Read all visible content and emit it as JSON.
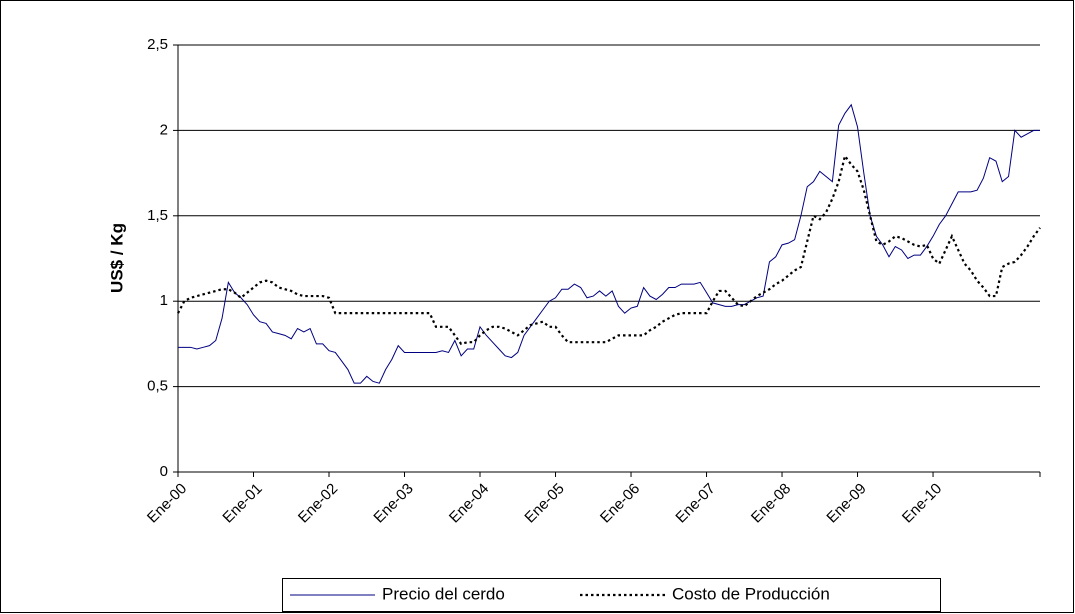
{
  "chart_data": {
    "type": "line",
    "ylabel": "US$ / Kg",
    "categories": [
      "Ene-00",
      null,
      null,
      null,
      null,
      null,
      null,
      null,
      null,
      null,
      null,
      null,
      "Ene-01",
      null,
      null,
      null,
      null,
      null,
      null,
      null,
      null,
      null,
      null,
      null,
      "Ene-02",
      null,
      null,
      null,
      null,
      null,
      null,
      null,
      null,
      null,
      null,
      null,
      "Ene-03",
      null,
      null,
      null,
      null,
      null,
      null,
      null,
      null,
      null,
      null,
      null,
      "Ene-04",
      null,
      null,
      null,
      null,
      null,
      null,
      null,
      null,
      null,
      null,
      null,
      "Ene-05",
      null,
      null,
      null,
      null,
      null,
      null,
      null,
      null,
      null,
      null,
      null,
      "Ene-06",
      null,
      null,
      null,
      null,
      null,
      null,
      null,
      null,
      null,
      null,
      null,
      "Ene-07",
      null,
      null,
      null,
      null,
      null,
      null,
      null,
      null,
      null,
      null,
      null,
      "Ene-08",
      null,
      null,
      null,
      null,
      null,
      null,
      null,
      null,
      null,
      null,
      null,
      "Ene-09",
      null,
      null,
      null,
      null,
      null,
      null,
      null,
      null,
      null,
      null,
      null,
      "Ene-10",
      null,
      null,
      null,
      null,
      null,
      null,
      null,
      null,
      null,
      null,
      null,
      null,
      null,
      null,
      null,
      null,
      null
    ],
    "series": [
      {
        "name": "Precio del cerdo",
        "color": "#000080",
        "dash": false,
        "values": [
          0.73,
          0.73,
          0.73,
          0.72,
          0.73,
          0.74,
          0.77,
          0.9,
          1.11,
          1.05,
          1.02,
          0.98,
          0.92,
          0.88,
          0.87,
          0.82,
          0.81,
          0.8,
          0.78,
          0.84,
          0.82,
          0.84,
          0.75,
          0.75,
          0.71,
          0.7,
          0.65,
          0.6,
          0.52,
          0.52,
          0.56,
          0.53,
          0.52,
          0.6,
          0.66,
          0.74,
          0.7,
          0.7,
          0.7,
          0.7,
          0.7,
          0.7,
          0.71,
          0.7,
          0.77,
          0.68,
          0.72,
          0.72,
          0.85,
          0.8,
          0.76,
          0.72,
          0.68,
          0.67,
          0.7,
          0.8,
          0.85,
          0.9,
          0.95,
          1.0,
          1.02,
          1.07,
          1.07,
          1.1,
          1.08,
          1.02,
          1.03,
          1.06,
          1.03,
          1.06,
          0.97,
          0.93,
          0.96,
          0.97,
          1.08,
          1.03,
          1.01,
          1.04,
          1.08,
          1.08,
          1.1,
          1.1,
          1.1,
          1.11,
          1.05,
          0.99,
          0.98,
          0.97,
          0.97,
          0.98,
          0.98,
          1.0,
          1.02,
          1.03,
          1.23,
          1.26,
          1.33,
          1.34,
          1.36,
          1.5,
          1.67,
          1.7,
          1.76,
          1.73,
          1.7,
          2.03,
          2.1,
          2.15,
          2.02,
          1.75,
          1.5,
          1.38,
          1.33,
          1.26,
          1.32,
          1.3,
          1.25,
          1.27,
          1.27,
          1.32,
          1.38,
          1.45,
          1.5,
          1.57,
          1.64,
          1.64,
          1.64,
          1.65,
          1.72,
          1.84,
          1.82,
          1.7,
          1.73,
          2.0,
          1.96,
          1.98,
          2.0,
          2.0
        ]
      },
      {
        "name": "Costo de Producción",
        "color": "#000000",
        "dash": true,
        "values": [
          0.93,
          1.0,
          1.02,
          1.03,
          1.04,
          1.05,
          1.06,
          1.07,
          1.07,
          1.05,
          1.02,
          1.05,
          1.08,
          1.11,
          1.12,
          1.11,
          1.08,
          1.07,
          1.06,
          1.04,
          1.03,
          1.03,
          1.03,
          1.03,
          1.02,
          0.93,
          0.93,
          0.93,
          0.93,
          0.93,
          0.93,
          0.93,
          0.93,
          0.93,
          0.93,
          0.93,
          0.93,
          0.93,
          0.93,
          0.93,
          0.93,
          0.85,
          0.85,
          0.85,
          0.8,
          0.75,
          0.76,
          0.76,
          0.8,
          0.83,
          0.85,
          0.85,
          0.84,
          0.82,
          0.8,
          0.83,
          0.86,
          0.87,
          0.88,
          0.85,
          0.85,
          0.8,
          0.76,
          0.76,
          0.76,
          0.76,
          0.76,
          0.76,
          0.76,
          0.78,
          0.8,
          0.8,
          0.8,
          0.8,
          0.8,
          0.83,
          0.85,
          0.88,
          0.9,
          0.92,
          0.93,
          0.93,
          0.93,
          0.93,
          0.93,
          1.0,
          1.06,
          1.06,
          1.02,
          0.98,
          0.97,
          1.0,
          1.03,
          1.05,
          1.07,
          1.1,
          1.12,
          1.15,
          1.18,
          1.2,
          1.35,
          1.5,
          1.48,
          1.52,
          1.6,
          1.7,
          1.85,
          1.8,
          1.76,
          1.65,
          1.5,
          1.35,
          1.33,
          1.35,
          1.38,
          1.37,
          1.35,
          1.33,
          1.32,
          1.33,
          1.25,
          1.22,
          1.3,
          1.38,
          1.3,
          1.22,
          1.18,
          1.12,
          1.08,
          1.03,
          1.03,
          1.2,
          1.22,
          1.23,
          1.27,
          1.32,
          1.38,
          1.43
        ]
      }
    ],
    "ylim": [
      0,
      2.5
    ],
    "yticks": [
      0,
      {
        "value": 0.5,
        "label": "0,5"
      },
      1,
      {
        "value": 1.5,
        "label": "1,5"
      },
      2,
      {
        "value": 2.5,
        "label": "2,5"
      }
    ],
    "grid": true,
    "legend": "bottom"
  }
}
